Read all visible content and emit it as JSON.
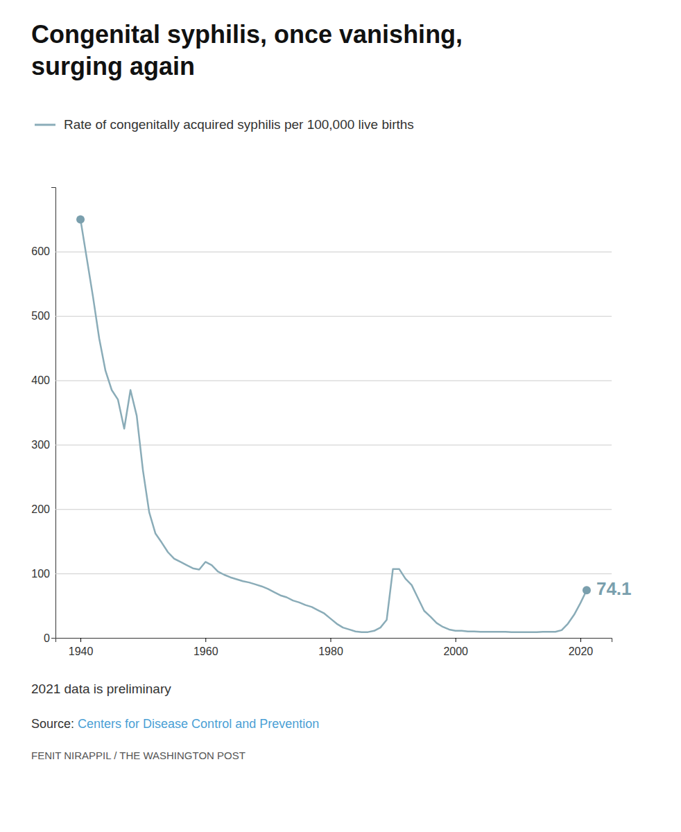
{
  "chart_data": {
    "type": "line",
    "title": "Congenital syphilis, once vanishing, surging again",
    "x": [
      1940,
      1941,
      1942,
      1943,
      1944,
      1945,
      1946,
      1947,
      1948,
      1949,
      1950,
      1951,
      1952,
      1953,
      1954,
      1955,
      1956,
      1957,
      1958,
      1959,
      1960,
      1961,
      1962,
      1963,
      1964,
      1965,
      1966,
      1967,
      1968,
      1969,
      1970,
      1971,
      1972,
      1973,
      1974,
      1975,
      1976,
      1977,
      1978,
      1979,
      1980,
      1981,
      1982,
      1983,
      1984,
      1985,
      1986,
      1987,
      1988,
      1989,
      1990,
      1991,
      1992,
      1993,
      1994,
      1995,
      1996,
      1997,
      1998,
      1999,
      2000,
      2001,
      2002,
      2003,
      2004,
      2005,
      2006,
      2007,
      2008,
      2009,
      2010,
      2011,
      2012,
      2013,
      2014,
      2015,
      2016,
      2017,
      2018,
      2019,
      2020,
      2021
    ],
    "series": [
      {
        "name": "Rate of congenitally acquired syphilis per 100,000 live births",
        "color": "#8aacb8",
        "marker": "endpoints",
        "values": [
          650,
          590,
          530,
          465,
          415,
          385,
          370,
          325,
          385,
          345,
          260,
          195,
          162,
          148,
          133,
          123,
          118,
          113,
          108,
          106,
          118,
          113,
          103,
          98,
          94,
          91,
          88,
          86,
          83,
          80,
          76,
          71,
          66,
          63,
          58,
          55,
          51,
          48,
          43,
          38,
          30,
          22,
          16,
          13,
          10,
          9,
          9,
          11,
          16,
          28,
          107,
          107,
          92,
          82,
          62,
          42,
          33,
          23,
          17,
          13,
          11,
          11,
          10,
          10,
          9.5,
          9.5,
          9.5,
          9.5,
          9.5,
          9,
          9,
          9,
          9,
          9,
          9.5,
          9.5,
          9.5,
          12,
          22,
          36,
          54,
          74.1
        ]
      }
    ],
    "annotations": [
      {
        "x": 2021,
        "y": 74.1,
        "text": "74.1",
        "color": "#7a9fad"
      }
    ],
    "note": "2021 data is preliminary",
    "source_prefix": "Source: ",
    "source": "Centers for Disease Control and Prevention",
    "source_color": "#4a9fd5",
    "credit": "FENIT NIRAPPIL / THE WASHINGTON POST",
    "xlim": [
      1936,
      2025
    ],
    "xticks": [
      1940,
      1960,
      1980,
      2000,
      2020
    ],
    "ylim": [
      0,
      700
    ],
    "yticks": [
      0,
      100,
      200,
      300,
      400,
      500,
      600
    ],
    "grid": "y",
    "legend": "top-left"
  }
}
